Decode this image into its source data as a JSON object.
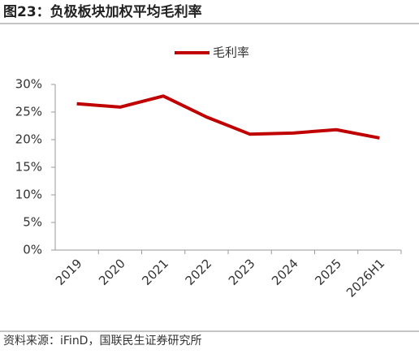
{
  "chart_data": {
    "type": "line",
    "title": "图23：负极板块加权平均毛利率",
    "source": "资料来源：iFinD，国联民生证券研究所",
    "categories": [
      "2019",
      "2020",
      "2021",
      "2022",
      "2023",
      "2024",
      "2025",
      "2026H1"
    ],
    "series": [
      {
        "name": "毛利率",
        "color": "#c00000",
        "values": [
          26.5,
          25.9,
          27.9,
          24.1,
          21.0,
          21.2,
          21.8,
          20.3
        ]
      }
    ],
    "ylim": [
      0,
      30
    ],
    "yticks": [
      {
        "value": 0,
        "label": "0%"
      },
      {
        "value": 5,
        "label": "5%"
      },
      {
        "value": 10,
        "label": "10%"
      },
      {
        "value": 15,
        "label": "15%"
      },
      {
        "value": 20,
        "label": "20%"
      },
      {
        "value": 25,
        "label": "25%"
      },
      {
        "value": 30,
        "label": "30%"
      }
    ],
    "legend": "top"
  }
}
